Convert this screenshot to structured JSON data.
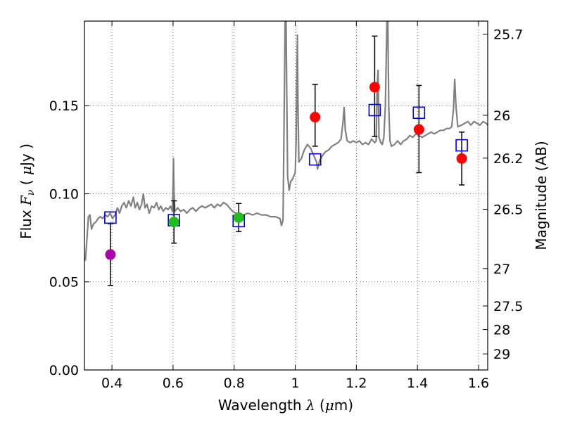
{
  "chart_data": {
    "type": "scatter",
    "xlabel": {
      "prefix": "Wavelength",
      "symbol": "λ",
      "unit_open": "(",
      "unit_mu": "μ",
      "unit_rest": "m)"
    },
    "ylabel": {
      "prefix": "Flux",
      "symbol": "F",
      "subscript": "ν",
      "unit_open": "(",
      "unit_mu": "μ",
      "unit_rest": "Jy",
      "unit_close": ")"
    },
    "y2label": "Magnitude (AB)",
    "xlim": [
      0.31,
      1.63
    ],
    "ylim": [
      0.0,
      0.198
    ],
    "x_ticks": [
      {
        "value": 0.4,
        "label": "0.4"
      },
      {
        "value": 0.6,
        "label": "0.6"
      },
      {
        "value": 0.8,
        "label": "0.8"
      },
      {
        "value": 1.0,
        "label": "1"
      },
      {
        "value": 1.2,
        "label": "1.2"
      },
      {
        "value": 1.4,
        "label": "1.4"
      },
      {
        "value": 1.6,
        "label": "1.6"
      }
    ],
    "y_ticks": [
      {
        "value": 0.0,
        "label": "0.00"
      },
      {
        "value": 0.05,
        "label": "0.05"
      },
      {
        "value": 0.1,
        "label": "0.10"
      },
      {
        "value": 0.15,
        "label": "0.15"
      }
    ],
    "y2_ticks": [
      {
        "value": 25.7,
        "label": "25.7"
      },
      {
        "value": 26,
        "label": "26"
      },
      {
        "value": 26.2,
        "label": "26.2"
      },
      {
        "value": 26.5,
        "label": "26.5"
      },
      {
        "value": 27,
        "label": "27"
      },
      {
        "value": 27.5,
        "label": "27.5"
      },
      {
        "value": 28,
        "label": "28"
      },
      {
        "value": 29,
        "label": "29"
      }
    ],
    "grid": true,
    "colors": {
      "spectrum": "#808080",
      "model_box": "#0000cc",
      "errorbar": "#000000",
      "purple": "#aa00aa",
      "green": "#22bb22",
      "red": "#ff0000"
    },
    "observed": [
      {
        "x": 0.395,
        "y": 0.0655,
        "err_lo": 0.0175,
        "err_hi": 0.0175,
        "color": "purple"
      },
      {
        "x": 0.603,
        "y": 0.084,
        "err_lo": 0.012,
        "err_hi": 0.012,
        "color": "green"
      },
      {
        "x": 0.815,
        "y": 0.0865,
        "err_lo": 0.008,
        "err_hi": 0.008,
        "color": "green"
      },
      {
        "x": 1.065,
        "y": 0.1435,
        "err_lo": 0.0165,
        "err_hi": 0.0185,
        "color": "red"
      },
      {
        "x": 1.26,
        "y": 0.1605,
        "err_lo": 0.028,
        "err_hi": 0.029,
        "color": "red"
      },
      {
        "x": 1.405,
        "y": 0.1365,
        "err_lo": 0.0245,
        "err_hi": 0.025,
        "color": "red"
      },
      {
        "x": 1.545,
        "y": 0.12,
        "err_lo": 0.015,
        "err_hi": 0.015,
        "color": "red"
      }
    ],
    "model_points": [
      {
        "x": 0.395,
        "y": 0.0865
      },
      {
        "x": 0.603,
        "y": 0.085
      },
      {
        "x": 0.815,
        "y": 0.0845
      },
      {
        "x": 1.065,
        "y": 0.1195
      },
      {
        "x": 1.26,
        "y": 0.1475
      },
      {
        "x": 1.405,
        "y": 0.146
      },
      {
        "x": 1.545,
        "y": 0.1275
      }
    ],
    "spectrum": [
      [
        0.313,
        0.062
      ],
      [
        0.318,
        0.074
      ],
      [
        0.323,
        0.087
      ],
      [
        0.328,
        0.088
      ],
      [
        0.333,
        0.08
      ],
      [
        0.34,
        0.083
      ],
      [
        0.347,
        0.084
      ],
      [
        0.355,
        0.086
      ],
      [
        0.362,
        0.087
      ],
      [
        0.37,
        0.086
      ],
      [
        0.378,
        0.088
      ],
      [
        0.386,
        0.087
      ],
      [
        0.394,
        0.089
      ],
      [
        0.402,
        0.086
      ],
      [
        0.41,
        0.088
      ],
      [
        0.418,
        0.092
      ],
      [
        0.425,
        0.089
      ],
      [
        0.432,
        0.093
      ],
      [
        0.44,
        0.095
      ],
      [
        0.447,
        0.092
      ],
      [
        0.455,
        0.096
      ],
      [
        0.462,
        0.093
      ],
      [
        0.47,
        0.098
      ],
      [
        0.476,
        0.092
      ],
      [
        0.483,
        0.095
      ],
      [
        0.49,
        0.091
      ],
      [
        0.497,
        0.094
      ],
      [
        0.503,
        0.1
      ],
      [
        0.508,
        0.092
      ],
      [
        0.515,
        0.094
      ],
      [
        0.522,
        0.089
      ],
      [
        0.53,
        0.093
      ],
      [
        0.538,
        0.092
      ],
      [
        0.546,
        0.095
      ],
      [
        0.553,
        0.091
      ],
      [
        0.56,
        0.093
      ],
      [
        0.568,
        0.09
      ],
      [
        0.576,
        0.092
      ],
      [
        0.584,
        0.091
      ],
      [
        0.592,
        0.093
      ],
      [
        0.598,
        0.09
      ],
      [
        0.6,
        0.105
      ],
      [
        0.6015,
        0.12
      ],
      [
        0.603,
        0.102
      ],
      [
        0.606,
        0.09
      ],
      [
        0.615,
        0.092
      ],
      [
        0.625,
        0.09
      ],
      [
        0.635,
        0.091
      ],
      [
        0.645,
        0.089
      ],
      [
        0.655,
        0.091
      ],
      [
        0.665,
        0.092
      ],
      [
        0.675,
        0.09
      ],
      [
        0.685,
        0.092
      ],
      [
        0.695,
        0.093
      ],
      [
        0.705,
        0.092
      ],
      [
        0.715,
        0.093
      ],
      [
        0.725,
        0.094
      ],
      [
        0.735,
        0.092
      ],
      [
        0.745,
        0.094
      ],
      [
        0.755,
        0.093
      ],
      [
        0.765,
        0.095
      ],
      [
        0.775,
        0.094
      ],
      [
        0.785,
        0.092
      ],
      [
        0.795,
        0.09
      ],
      [
        0.805,
        0.089
      ],
      [
        0.815,
        0.089
      ],
      [
        0.83,
        0.088
      ],
      [
        0.845,
        0.089
      ],
      [
        0.86,
        0.088
      ],
      [
        0.875,
        0.089
      ],
      [
        0.89,
        0.088
      ],
      [
        0.905,
        0.088
      ],
      [
        0.92,
        0.087
      ],
      [
        0.935,
        0.087
      ],
      [
        0.95,
        0.086
      ],
      [
        0.955,
        0.082
      ],
      [
        0.96,
        0.085
      ],
      [
        0.964,
        0.15
      ],
      [
        0.967,
        0.198
      ],
      [
        0.97,
        0.198
      ],
      [
        0.972,
        0.16
      ],
      [
        0.975,
        0.11
      ],
      [
        0.98,
        0.102
      ],
      [
        0.985,
        0.107
      ],
      [
        0.99,
        0.108
      ],
      [
        0.995,
        0.11
      ],
      [
        1.0,
        0.112
      ],
      [
        1.003,
        0.13
      ],
      [
        1.005,
        0.165
      ],
      [
        1.007,
        0.19
      ],
      [
        1.009,
        0.15
      ],
      [
        1.012,
        0.118
      ],
      [
        1.02,
        0.12
      ],
      [
        1.03,
        0.125
      ],
      [
        1.04,
        0.128
      ],
      [
        1.05,
        0.126
      ],
      [
        1.06,
        0.122
      ],
      [
        1.07,
        0.118
      ],
      [
        1.073,
        0.114
      ],
      [
        1.08,
        0.119
      ],
      [
        1.09,
        0.122
      ],
      [
        1.1,
        0.124
      ],
      [
        1.11,
        0.125
      ],
      [
        1.12,
        0.127
      ],
      [
        1.13,
        0.128
      ],
      [
        1.14,
        0.129
      ],
      [
        1.15,
        0.131
      ],
      [
        1.156,
        0.14
      ],
      [
        1.16,
        0.149
      ],
      [
        1.164,
        0.136
      ],
      [
        1.17,
        0.13
      ],
      [
        1.18,
        0.129
      ],
      [
        1.19,
        0.13
      ],
      [
        1.2,
        0.129
      ],
      [
        1.21,
        0.13
      ],
      [
        1.22,
        0.128
      ],
      [
        1.23,
        0.129
      ],
      [
        1.24,
        0.128
      ],
      [
        1.25,
        0.131
      ],
      [
        1.26,
        0.129
      ],
      [
        1.265,
        0.13
      ],
      [
        1.268,
        0.16
      ],
      [
        1.271,
        0.17
      ],
      [
        1.274,
        0.132
      ],
      [
        1.28,
        0.129
      ],
      [
        1.285,
        0.128
      ],
      [
        1.29,
        0.132
      ],
      [
        1.295,
        0.15
      ],
      [
        1.3,
        0.198
      ],
      [
        1.303,
        0.198
      ],
      [
        1.306,
        0.15
      ],
      [
        1.31,
        0.13
      ],
      [
        1.315,
        0.127
      ],
      [
        1.325,
        0.128
      ],
      [
        1.335,
        0.13
      ],
      [
        1.345,
        0.128
      ],
      [
        1.355,
        0.13
      ],
      [
        1.365,
        0.131
      ],
      [
        1.375,
        0.133
      ],
      [
        1.385,
        0.132
      ],
      [
        1.395,
        0.134
      ],
      [
        1.405,
        0.133
      ],
      [
        1.415,
        0.132
      ],
      [
        1.425,
        0.133
      ],
      [
        1.435,
        0.134
      ],
      [
        1.445,
        0.135
      ],
      [
        1.455,
        0.134
      ],
      [
        1.465,
        0.135
      ],
      [
        1.475,
        0.136
      ],
      [
        1.485,
        0.136
      ],
      [
        1.495,
        0.137
      ],
      [
        1.505,
        0.137
      ],
      [
        1.512,
        0.138
      ],
      [
        1.518,
        0.148
      ],
      [
        1.522,
        0.165
      ],
      [
        1.526,
        0.15
      ],
      [
        1.532,
        0.138
      ],
      [
        1.545,
        0.139
      ],
      [
        1.555,
        0.14
      ],
      [
        1.565,
        0.141
      ],
      [
        1.575,
        0.139
      ],
      [
        1.585,
        0.141
      ],
      [
        1.595,
        0.14
      ],
      [
        1.605,
        0.139
      ],
      [
        1.615,
        0.141
      ],
      [
        1.625,
        0.14
      ],
      [
        1.63,
        0.139
      ]
    ]
  }
}
